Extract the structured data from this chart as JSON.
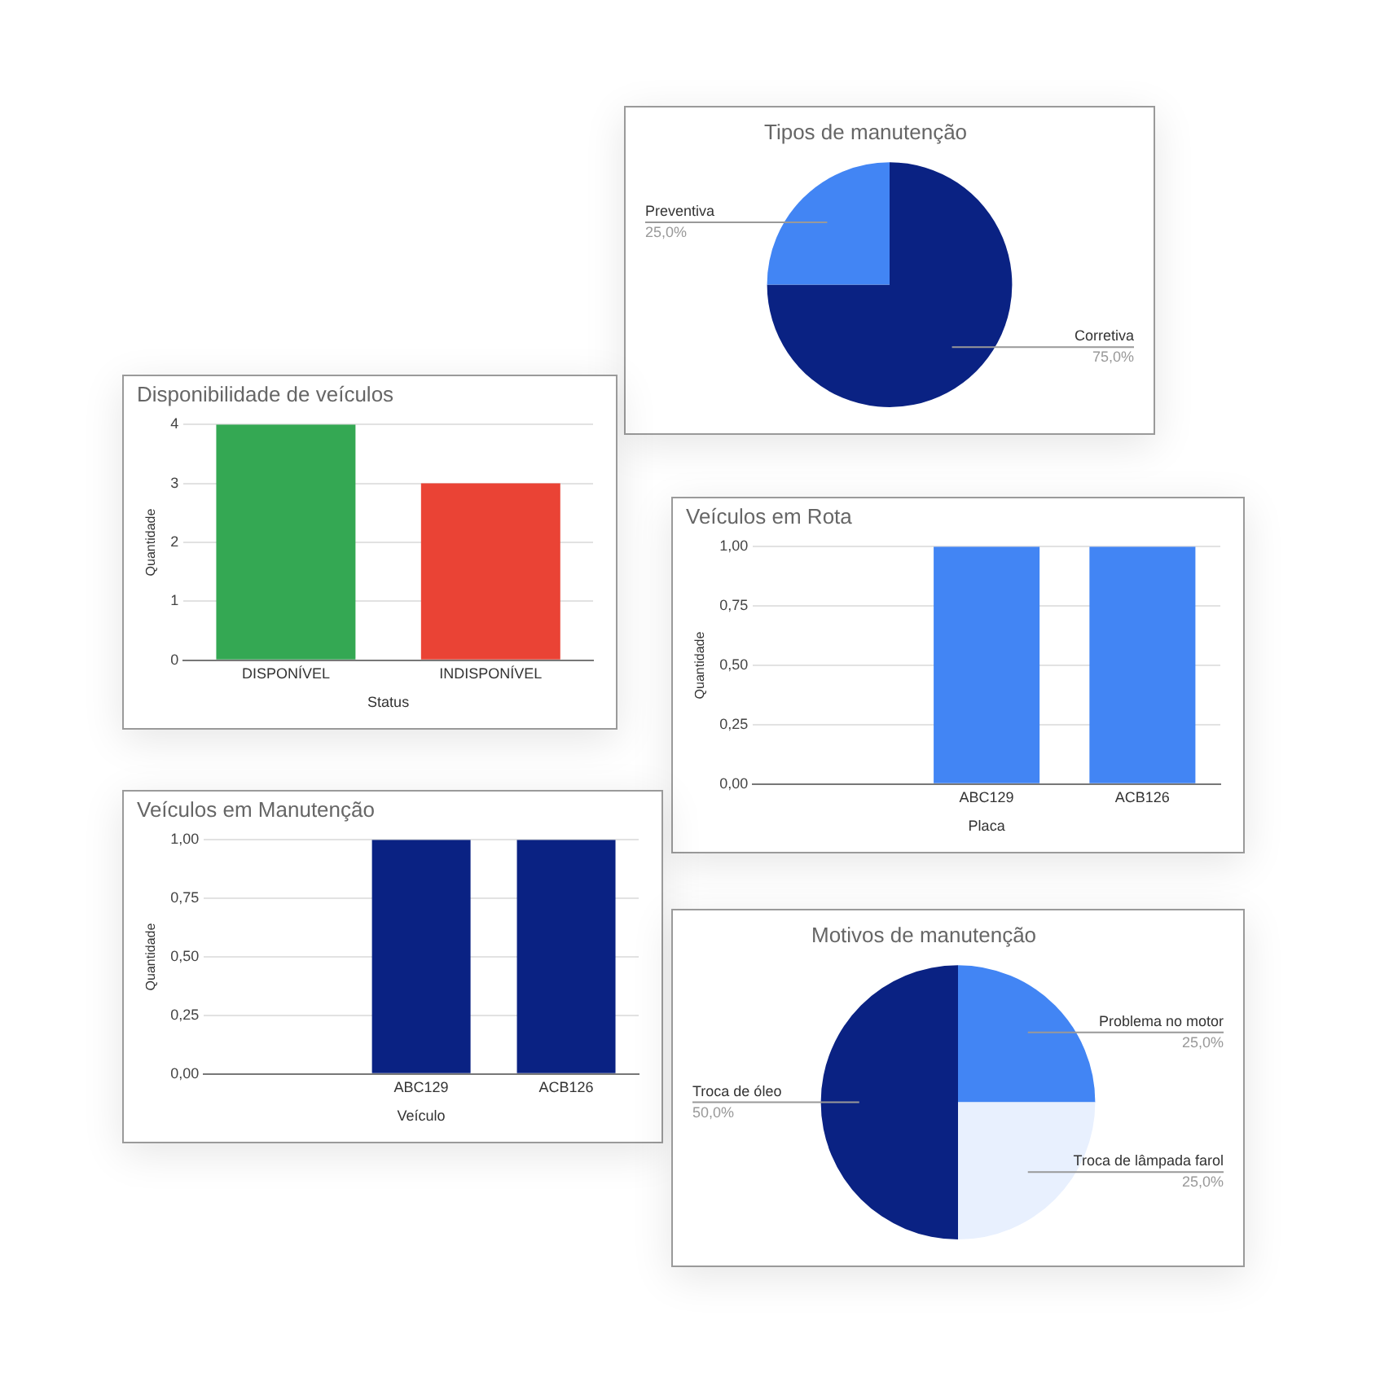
{
  "chart_data": [
    {
      "type": "pie",
      "title": "Tipos de manutenção",
      "categories": [
        "Corretiva",
        "Preventiva"
      ],
      "values": [
        75,
        25
      ],
      "colors": [
        "#0a2283",
        "#4285f4"
      ],
      "value_labels": [
        "75,0%",
        "25,0%"
      ],
      "legend": false
    },
    {
      "type": "bar",
      "title": "Disponibilidade de veículos",
      "categories": [
        "DISPONÍVEL",
        "INDISPONÍVEL"
      ],
      "values": [
        4,
        3
      ],
      "colors": [
        "#34a853",
        "#ea4335"
      ],
      "xlabel": "Status",
      "ylabel": "Quantidade",
      "ylim": [
        0,
        4
      ],
      "yticks": [
        0,
        1,
        2,
        3,
        4
      ],
      "grid": "y",
      "legend": false
    },
    {
      "type": "bar",
      "title": "Veículos em Rota",
      "categories": [
        null,
        "ABC129",
        "ACB126"
      ],
      "values": [
        0,
        1,
        1
      ],
      "color": "#4285f4",
      "xlabel": "Placa",
      "ylabel": "Quantidade",
      "ylim": [
        0,
        1
      ],
      "yticks": [
        {
          "value": 0,
          "label": "0,00"
        },
        {
          "value": 0.25,
          "label": "0,25"
        },
        {
          "value": 0.5,
          "label": "0,50"
        },
        {
          "value": 0.75,
          "label": "0,75"
        },
        {
          "value": 1,
          "label": "1,00"
        }
      ],
      "grid": "y",
      "legend": false
    },
    {
      "type": "bar",
      "title": "Veículos em Manutenção",
      "categories": [
        null,
        "ABC129",
        "ACB126"
      ],
      "values": [
        0,
        1,
        1
      ],
      "color": "#0a2283",
      "xlabel": "Veículo",
      "ylabel": "Quantidade",
      "ylim": [
        0,
        1
      ],
      "yticks": [
        {
          "value": 0,
          "label": "0,00"
        },
        {
          "value": 0.25,
          "label": "0,25"
        },
        {
          "value": 0.5,
          "label": "0,50"
        },
        {
          "value": 0.75,
          "label": "0,75"
        },
        {
          "value": 1,
          "label": "1,00"
        }
      ],
      "grid": "y",
      "legend": false
    },
    {
      "type": "pie",
      "title": "Motivos de manutenção",
      "categories": [
        "Problema no motor",
        "Troca de lâmpada farol",
        "Troca de óleo"
      ],
      "values": [
        25,
        25,
        50
      ],
      "colors": [
        "#4285f4",
        "#e8f0fe",
        "#0a2283"
      ],
      "value_labels": [
        "25,0%",
        "25,0%",
        "50,0%"
      ],
      "legend": false
    }
  ]
}
